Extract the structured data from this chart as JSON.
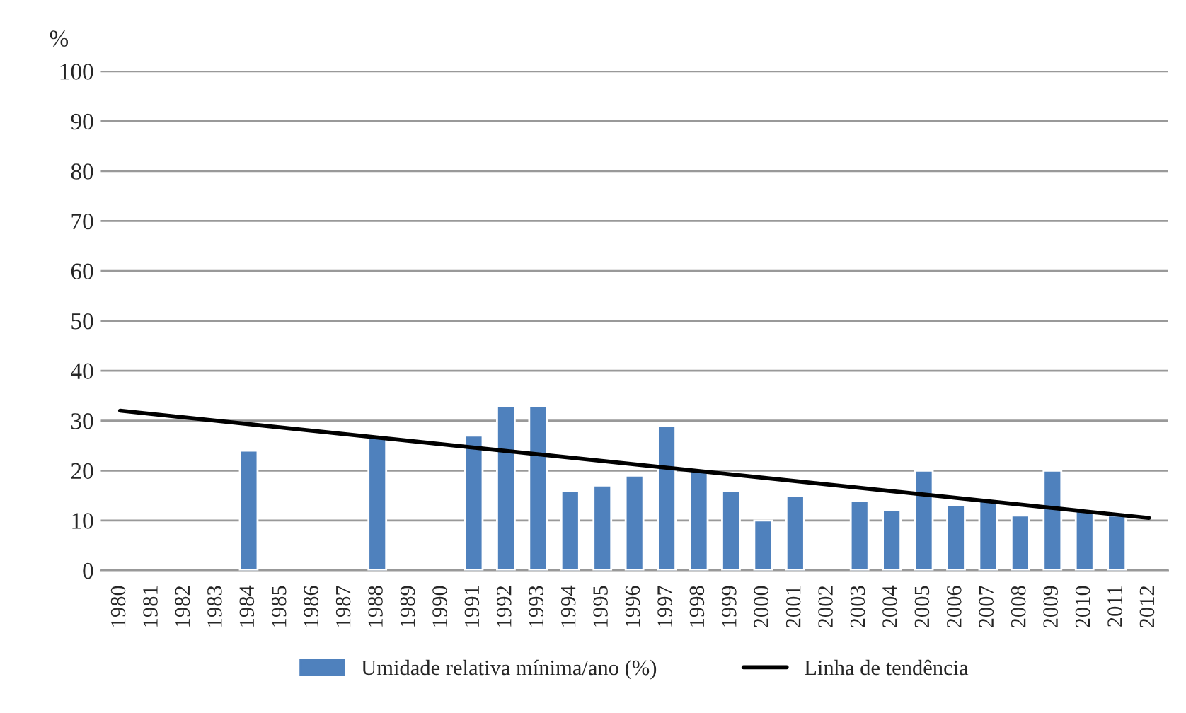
{
  "chart_data": {
    "type": "bar",
    "ylabel": "%",
    "categories": [
      "1980",
      "1981",
      "1982",
      "1983",
      "1984",
      "1985",
      "1986",
      "1987",
      "1988",
      "1989",
      "1990",
      "1991",
      "1992",
      "1993",
      "1994",
      "1995",
      "1996",
      "1997",
      "1998",
      "1999",
      "2000",
      "2001",
      "2002",
      "2003",
      "2004",
      "2005",
      "2006",
      "2007",
      "2008",
      "2009",
      "2010",
      "2011",
      "2012"
    ],
    "series": [
      {
        "name": "Umidade relativa mínima/ano (%)",
        "color": "#4f81bd",
        "values": [
          null,
          null,
          null,
          null,
          24,
          null,
          null,
          null,
          27,
          null,
          null,
          27,
          33,
          33,
          16,
          17,
          19,
          29,
          20,
          16,
          10,
          15,
          null,
          14,
          12,
          20,
          13,
          14,
          11,
          20,
          12,
          11,
          null
        ]
      },
      {
        "name": "Linha de tendência",
        "type": "line",
        "color": "#000000",
        "values": [
          32,
          null,
          null,
          null,
          null,
          null,
          null,
          null,
          null,
          null,
          null,
          null,
          null,
          null,
          null,
          null,
          null,
          null,
          null,
          null,
          null,
          null,
          null,
          null,
          null,
          null,
          null,
          null,
          null,
          null,
          null,
          null,
          10.5
        ]
      }
    ],
    "ylim": [
      0,
      100
    ],
    "yticks": [
      0,
      10,
      20,
      30,
      40,
      50,
      60,
      70,
      80,
      90,
      100
    ],
    "grid": "y",
    "legend": "bottom"
  }
}
